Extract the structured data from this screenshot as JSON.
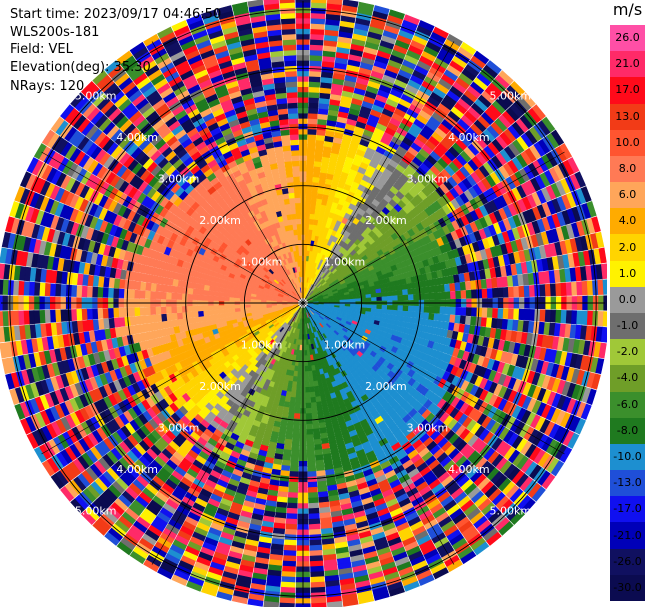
{
  "header": {
    "start_time": "Start time: 2023/09/17 04:46:50",
    "site": "WLS200s-181",
    "field": "Field: VEL",
    "elevation": "Elevation(deg): 35.30",
    "nrays": "NRays: 120"
  },
  "colorbar": {
    "unit": "m/s",
    "ticks": [
      "26.0",
      "21.0",
      "17.0",
      "13.0",
      "10.0",
      "8.0",
      "6.0",
      "4.0",
      "2.0",
      "1.0",
      "0.0",
      "-1.0",
      "-2.0",
      "-4.0",
      "-6.0",
      "-8.0",
      "-10.0",
      "-13.0",
      "-17.0",
      "-21.0",
      "-26.0",
      "-30.0"
    ],
    "colors": [
      "#ff4fa6",
      "#ff2a68",
      "#ff0a1a",
      "#f23b17",
      "#ff5530",
      "#ff7a55",
      "#ffa65a",
      "#ffab00",
      "#ffd400",
      "#fff200",
      "#9a9a9a",
      "#6e6e6e",
      "#a0c838",
      "#6f9e28",
      "#3b8f2c",
      "#1f7a1f",
      "#1d8fd0",
      "#1f4fd8",
      "#1010f0",
      "#0000b8",
      "#101060",
      "#0b0b50"
    ]
  },
  "chart_data": {
    "type": "ppi",
    "field": "VEL",
    "units": "m/s",
    "elevation_deg": 35.3,
    "nrays": 120,
    "range_rings_km": [
      1.0,
      2.0,
      3.0,
      4.0,
      5.0
    ],
    "ring_labels": [
      "1.00km",
      "2.00km",
      "3.00km",
      "4.00km",
      "5.00km"
    ],
    "color_levels": [
      -30.0,
      -26.0,
      -21.0,
      -17.0,
      -13.0,
      -10.0,
      -8.0,
      -6.0,
      -4.0,
      -2.0,
      -1.0,
      0.0,
      1.0,
      2.0,
      4.0,
      6.0,
      8.0,
      10.0,
      13.0,
      17.0,
      21.0,
      26.0
    ],
    "valid_range_km": 2.6,
    "approx_wind_pattern": "receding (positive) toward north-west, approaching (negative) toward south-east"
  }
}
